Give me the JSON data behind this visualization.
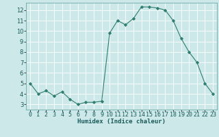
{
  "x": [
    0,
    1,
    2,
    3,
    4,
    5,
    6,
    7,
    8,
    9,
    10,
    11,
    12,
    13,
    14,
    15,
    16,
    17,
    18,
    19,
    20,
    21,
    22,
    23
  ],
  "y": [
    5.0,
    4.0,
    4.3,
    3.8,
    4.2,
    3.5,
    3.0,
    3.2,
    3.2,
    3.3,
    9.8,
    11.0,
    10.6,
    11.2,
    12.3,
    12.3,
    12.2,
    12.0,
    11.0,
    9.3,
    8.0,
    7.0,
    5.0,
    4.0
  ],
  "line_color": "#2e7d6e",
  "marker": "D",
  "marker_size": 2.2,
  "bg_color": "#cce8e8",
  "grid_color": "#ffffff",
  "xlabel": "Humidex (Indice chaleur)",
  "xlim": [
    -0.5,
    23.5
  ],
  "ylim": [
    2.5,
    12.7
  ],
  "yticks": [
    3,
    4,
    5,
    6,
    7,
    8,
    9,
    10,
    11,
    12
  ],
  "xticks": [
    0,
    1,
    2,
    3,
    4,
    5,
    6,
    7,
    8,
    9,
    10,
    11,
    12,
    13,
    14,
    15,
    16,
    17,
    18,
    19,
    20,
    21,
    22,
    23
  ],
  "label_fontsize": 6.5,
  "tick_fontsize": 6.0
}
